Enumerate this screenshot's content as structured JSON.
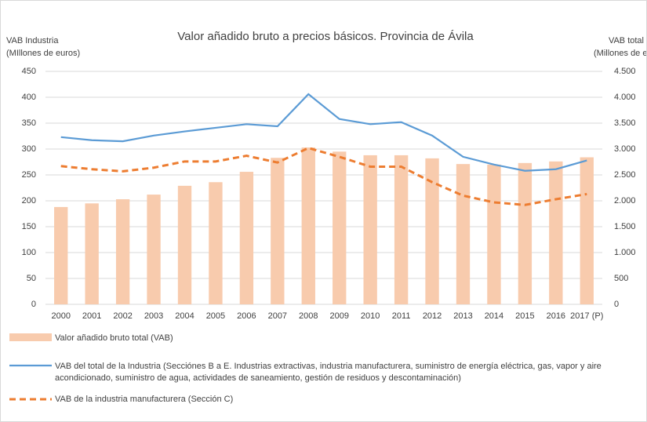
{
  "chart_data": {
    "type": "bar_line",
    "title": "Valor añadido bruto a precios básicos. Provincia de Ávila",
    "y_label": [
      "VAB Industria",
      "(MIllones de euros)"
    ],
    "y2_label": [
      "VAB total",
      "(Millones de euros"
    ],
    "categories": [
      "2000",
      "2001",
      "2002",
      "2003",
      "2004",
      "2005",
      "2006",
      "2007",
      "2008",
      "2009",
      "2010",
      "2011",
      "2012",
      "2013",
      "2014",
      "2015",
      "2016",
      "2017 (P)"
    ],
    "ylim": [
      0,
      450
    ],
    "yticks": [
      0,
      50,
      100,
      150,
      200,
      250,
      300,
      350,
      400,
      450
    ],
    "y2lim": [
      0,
      4500
    ],
    "y2ticks": [
      0,
      500,
      {
        "value": 1000,
        "label": "1.000"
      },
      {
        "value": 1500,
        "label": "1.500"
      },
      {
        "value": 2000,
        "label": "2.000"
      },
      {
        "value": 2500,
        "label": "2.500"
      },
      {
        "value": 3000,
        "label": "3.000"
      },
      {
        "value": 3500,
        "label": "3.500"
      },
      {
        "value": 4000,
        "label": "4.000"
      },
      {
        "value": 4500,
        "label": "4.500"
      }
    ],
    "grid": true,
    "series": [
      {
        "name": "Valor añadido bruto total (VAB)",
        "type": "bar",
        "axis": "y2",
        "color": "#f8cbad",
        "values": [
          1880,
          1950,
          2030,
          2120,
          2290,
          2360,
          2560,
          2830,
          3030,
          2950,
          2880,
          2880,
          2820,
          2710,
          2700,
          2730,
          2760,
          2840
        ]
      },
      {
        "name": "VAB del total de la Industria (Secciónes B a E. Industrias extractivas, industria manufacturera, suministro de energía eléctrica, gas, vapor y aire acondicionado, suministro de agua, actividades de saneamiento, gestión de residuos y descontaminación)",
        "type": "line",
        "color": "#5b9bd5",
        "values": [
          323,
          317,
          315,
          326,
          334,
          341,
          348,
          344,
          406,
          358,
          348,
          352,
          326,
          285,
          270,
          258,
          261,
          278
        ]
      },
      {
        "name": "VAB de la industria manufacturera (Sección C)",
        "type": "line",
        "dashed": true,
        "color": "#ed7d31",
        "values": [
          267,
          261,
          257,
          264,
          276,
          276,
          287,
          274,
          302,
          285,
          266,
          266,
          236,
          210,
          197,
          192,
          203,
          213
        ]
      }
    ]
  }
}
